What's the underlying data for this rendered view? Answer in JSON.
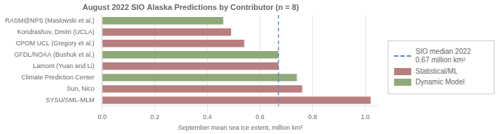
{
  "chart_data": {
    "type": "bar",
    "orientation": "horizontal",
    "title": "August 2022 SIO Alaska Predictions by Contributor (n = 8)",
    "xlabel": "September mean sea ice extent, million km²",
    "categories": [
      "SYSU/SML-MLM",
      "Sun, Nico",
      "Climate Prediction Center",
      "Lamont (Yuan and Li)",
      "GFDL/NOAA (Bushuk et al.)",
      "CPOM UCL (Gregory et al.)",
      "Kondrashov, Dmitri (UCLA)",
      "RASM@NPS (Maslowski et al.)"
    ],
    "values": [
      1.02,
      0.76,
      0.74,
      0.67,
      0.67,
      0.54,
      0.49,
      0.46
    ],
    "colors": [
      "#b87f7f",
      "#b87f7f",
      "#8faa77",
      "#b87f7f",
      "#8faa77",
      "#b87f7f",
      "#b87f7f",
      "#8faa77"
    ],
    "xlim": [
      0.0,
      1.05
    ],
    "xticks": [
      {
        "value": 0.0,
        "label": "0.0"
      },
      0.2,
      0.4,
      0.6,
      0.8,
      {
        "value": 1.0,
        "label": "1.0"
      }
    ],
    "grid": true,
    "legend": "right",
    "reference_line": {
      "value": 0.67,
      "name": "SIO median 2022\n0.67 million km²",
      "color": "#5588cc",
      "line_style": "dashed"
    },
    "legend_entries": [
      {
        "name": "Statistical/ML",
        "color": "#b87f7f"
      },
      {
        "name": "Dynamic Model",
        "color": "#8faa77"
      }
    ]
  }
}
